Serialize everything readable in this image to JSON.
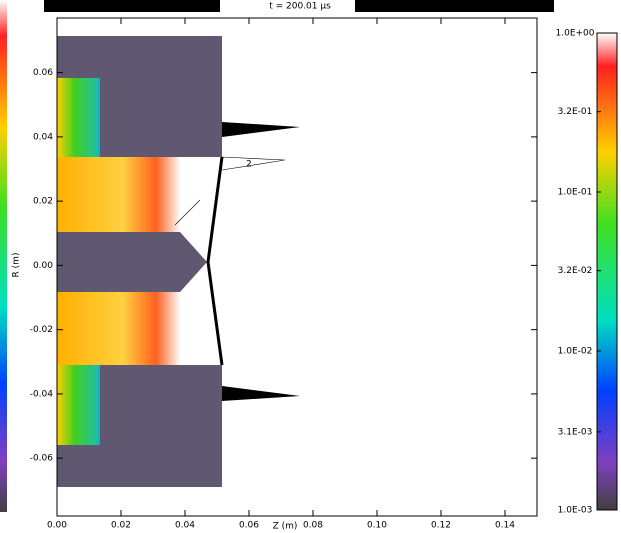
{
  "chart_data": {
    "type": "heatmap",
    "title": "t =   200.01 μs",
    "xlabel": "Z (m)",
    "ylabel": "R (m)",
    "xlim": [
      0,
      0.15
    ],
    "xticks": [
      {
        "value": 0,
        "label": "0.00"
      },
      0.02,
      0.04,
      0.06,
      0.08,
      {
        "value": 0.1,
        "label": "0.10"
      },
      0.12,
      0.14
    ],
    "ylim": [
      -0.078,
      0.077
    ],
    "yticks": [
      -0.06,
      -0.04,
      -0.02,
      {
        "value": 0,
        "label": "0.00"
      },
      0.02,
      0.04,
      0.06
    ],
    "colorbar": {
      "log": true,
      "lim": [
        0.001,
        1
      ],
      "ticks": [
        {
          "value": 1,
          "label": "1.0E+00"
        },
        {
          "value": 0.32,
          "label": "3.2E-01"
        },
        {
          "value": 0.1,
          "label": "1.0E-01"
        },
        {
          "value": 0.032,
          "label": "3.2E-02"
        },
        {
          "value": 0.01,
          "label": "1.0E-02"
        },
        {
          "value": 0.0031,
          "label": "3.1E-03"
        },
        {
          "value": 0.001,
          "label": "1.0E-03"
        }
      ]
    },
    "annotations": [
      "2"
    ]
  }
}
